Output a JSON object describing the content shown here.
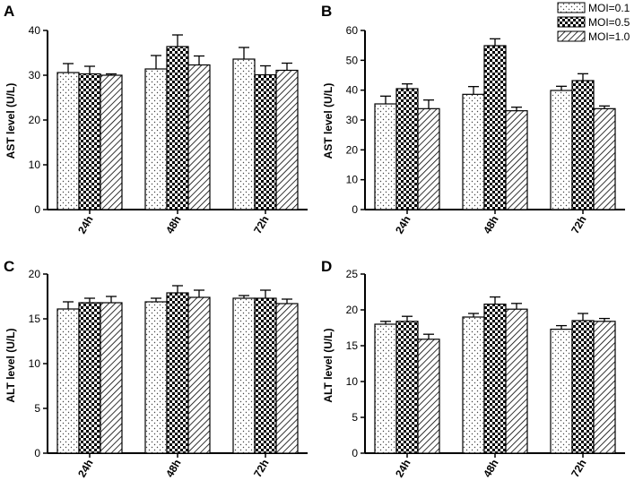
{
  "legend": [
    "MOI=0.1",
    "MOI=0.5",
    "MOI=1.0"
  ],
  "chart_data": [
    {
      "panel": "A",
      "type": "bar",
      "ylabel": "AST level (U/L)",
      "categories": [
        "24h",
        "48h",
        "72h"
      ],
      "ylim": [
        0,
        40
      ],
      "yticks": [
        0,
        10,
        20,
        30,
        40
      ],
      "series": [
        {
          "name": "MOI=0.1",
          "values": [
            30.6,
            31.4,
            33.6
          ],
          "errors": [
            2.0,
            3.0,
            2.6
          ]
        },
        {
          "name": "MOI=0.5",
          "values": [
            30.3,
            36.4,
            30.1
          ],
          "errors": [
            1.7,
            2.6,
            2.0
          ]
        },
        {
          "name": "MOI=1.0",
          "values": [
            30.0,
            32.3,
            31.1
          ],
          "errors": [
            0.3,
            2.0,
            1.6
          ]
        }
      ]
    },
    {
      "panel": "B",
      "type": "bar",
      "ylabel": "AST level (U/L)",
      "categories": [
        "24h",
        "48h",
        "72h"
      ],
      "ylim": [
        0,
        60
      ],
      "yticks": [
        0,
        10,
        20,
        30,
        40,
        50,
        60
      ],
      "series": [
        {
          "name": "MOI=0.1",
          "values": [
            35.4,
            38.6,
            39.9
          ],
          "errors": [
            2.6,
            2.6,
            1.4
          ]
        },
        {
          "name": "MOI=0.5",
          "values": [
            40.5,
            54.9,
            43.2
          ],
          "errors": [
            1.6,
            2.3,
            2.3
          ]
        },
        {
          "name": "MOI=1.0",
          "values": [
            33.8,
            33.1,
            33.8
          ],
          "errors": [
            2.9,
            1.2,
            0.9
          ]
        }
      ]
    },
    {
      "panel": "C",
      "type": "bar",
      "ylabel": "ALT level (U/L)",
      "categories": [
        "24h",
        "48h",
        "72h"
      ],
      "ylim": [
        0,
        20
      ],
      "yticks": [
        0,
        5,
        10,
        15,
        20
      ],
      "series": [
        {
          "name": "MOI=0.1",
          "values": [
            16.1,
            16.9,
            17.3
          ],
          "errors": [
            0.8,
            0.4,
            0.3
          ]
        },
        {
          "name": "MOI=0.5",
          "values": [
            16.8,
            17.9,
            17.3
          ],
          "errors": [
            0.5,
            0.8,
            0.9
          ]
        },
        {
          "name": "MOI=1.0",
          "values": [
            16.8,
            17.4,
            16.7
          ],
          "errors": [
            0.7,
            0.8,
            0.5
          ]
        }
      ]
    },
    {
      "panel": "D",
      "type": "bar",
      "ylabel": "ALT level (U/L)",
      "categories": [
        "24h",
        "48h",
        "72h"
      ],
      "ylim": [
        0,
        25
      ],
      "yticks": [
        0,
        5,
        10,
        15,
        20,
        25
      ],
      "series": [
        {
          "name": "MOI=0.1",
          "values": [
            18.0,
            19.0,
            17.3
          ],
          "errors": [
            0.4,
            0.5,
            0.5
          ]
        },
        {
          "name": "MOI=0.5",
          "values": [
            18.4,
            20.8,
            18.5
          ],
          "errors": [
            0.7,
            1.0,
            1.0
          ]
        },
        {
          "name": "MOI=1.0",
          "values": [
            15.9,
            20.1,
            18.4
          ],
          "errors": [
            0.7,
            0.8,
            0.4
          ]
        }
      ]
    }
  ]
}
